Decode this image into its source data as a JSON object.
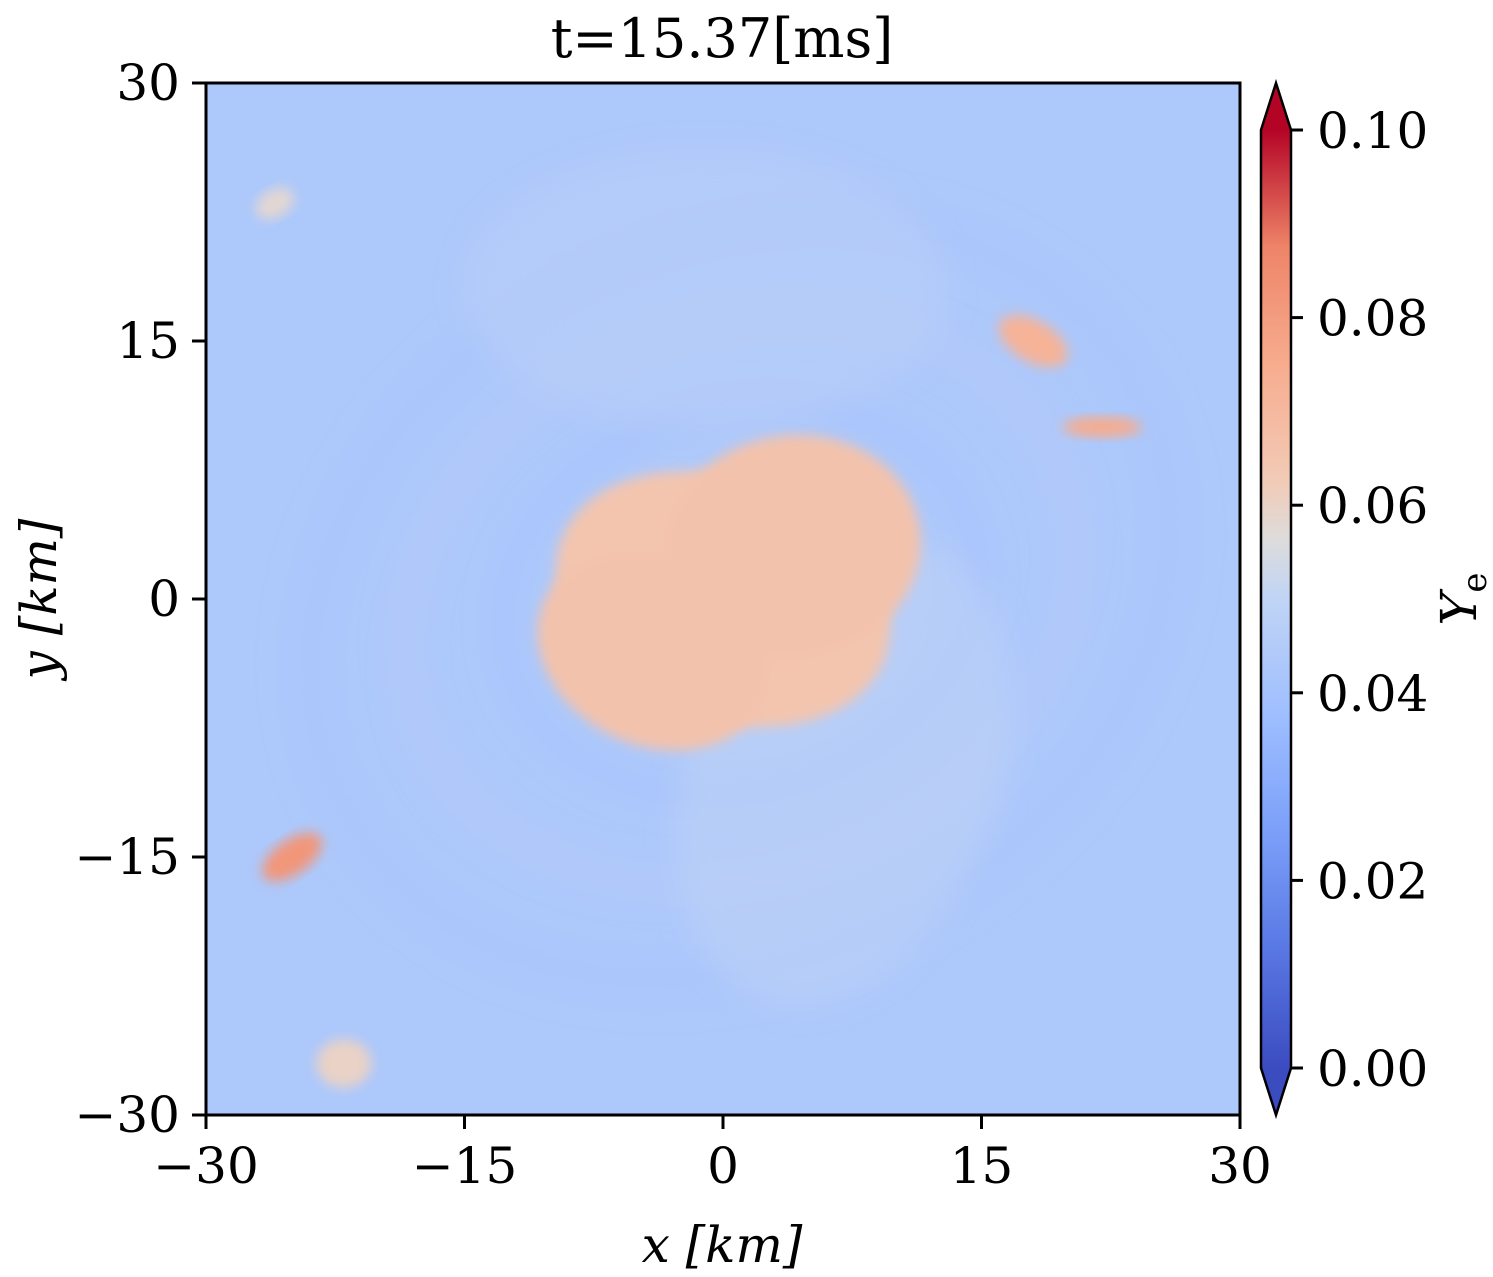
{
  "chart_data": {
    "type": "heatmap",
    "title": "t=15.37[ms]",
    "xlabel": "x [km]",
    "ylabel": "y [km]",
    "xlim": [
      -30,
      30
    ],
    "ylim": [
      -30,
      30
    ],
    "xticks": [
      -30,
      -15,
      0,
      15,
      30
    ],
    "yticks": [
      -30,
      -15,
      0,
      15,
      30
    ],
    "xtick_labels": [
      "−30",
      "−15",
      "0",
      "15",
      "30"
    ],
    "ytick_labels": [
      "−30",
      "−15",
      "0",
      "15",
      "30"
    ],
    "colorbar": {
      "label": "Y_e",
      "label_main": "Y",
      "label_sub": "e",
      "min": 0.0,
      "max": 0.1,
      "ticks": [
        0.0,
        0.02,
        0.04,
        0.06,
        0.08,
        0.1
      ],
      "tick_labels": [
        "0.00",
        "0.02",
        "0.04",
        "0.06",
        "0.08",
        "0.10"
      ],
      "colormap": "coolwarm",
      "extend": "both"
    },
    "background_value": 0.043,
    "features": [
      {
        "name": "central-core",
        "x": 0,
        "y": 0,
        "value": 0.065
      },
      {
        "name": "core-lobe-right",
        "x": 4,
        "y": 3,
        "value": 0.066
      },
      {
        "name": "core-lobe-left",
        "x": -4,
        "y": -3,
        "value": 0.066
      },
      {
        "name": "spiral-arm-upper-right",
        "x": 18,
        "y": 15,
        "value": 0.072
      },
      {
        "name": "clump-right",
        "x": 22,
        "y": 10,
        "value": 0.075
      },
      {
        "name": "clump-lower-left",
        "x": -25,
        "y": -15,
        "value": 0.082
      },
      {
        "name": "clump-bottom-left",
        "x": -22,
        "y": -27,
        "value": 0.06
      },
      {
        "name": "clump-top-left",
        "x": -26,
        "y": 23,
        "value": 0.058
      }
    ]
  }
}
